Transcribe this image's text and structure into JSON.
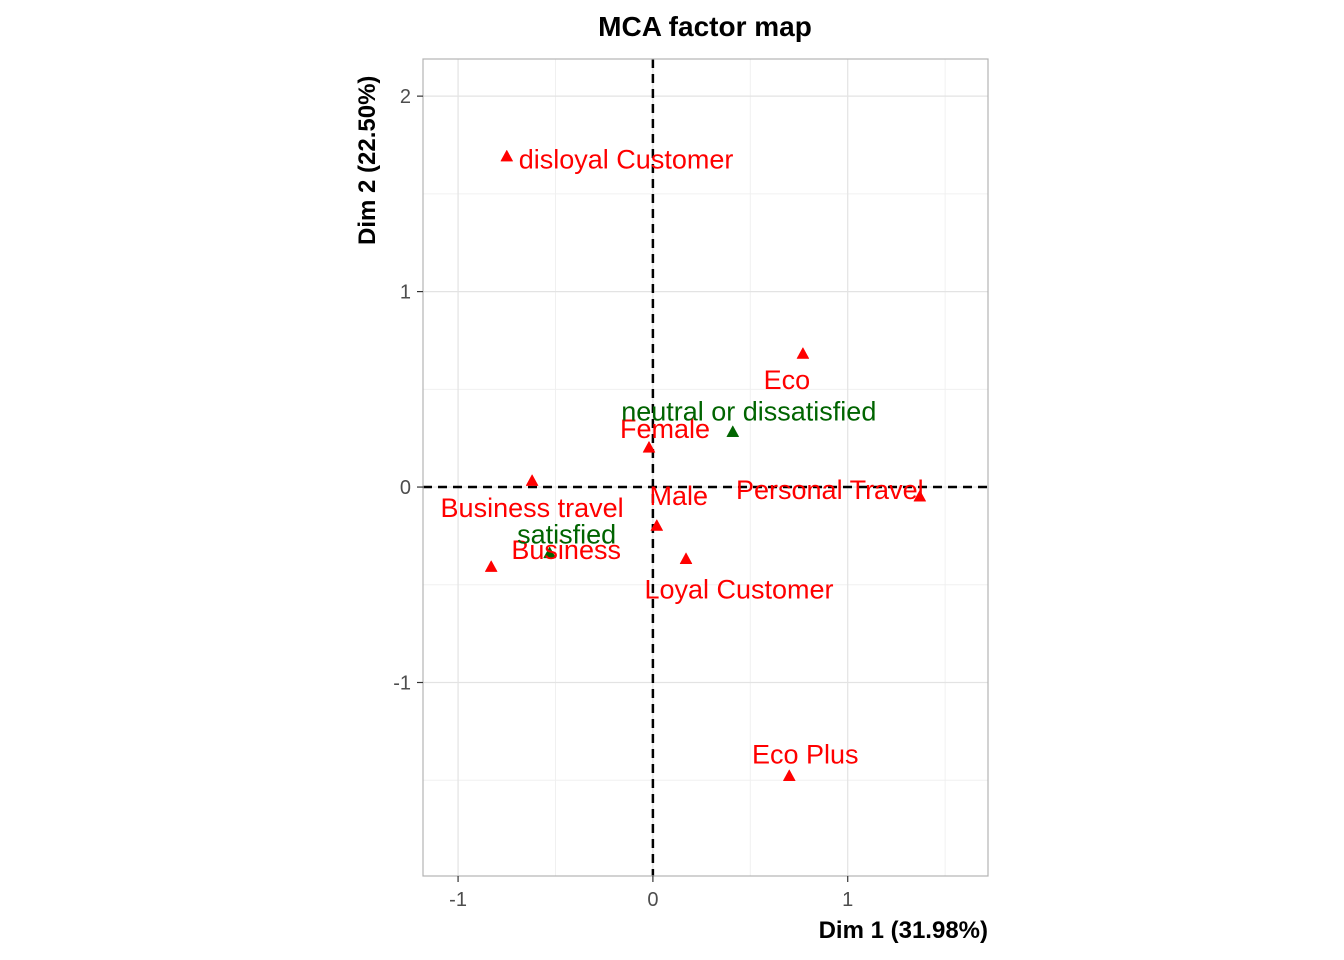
{
  "chart_data": {
    "type": "scatter",
    "title": "MCA factor map",
    "xlabel": "Dim 1 (31.98%)",
    "ylabel": "Dim 2 (22.50%)",
    "xlim": [
      -1.18,
      1.72
    ],
    "ylim": [
      -1.99,
      2.19
    ],
    "x_ticks": [
      -1,
      0,
      1
    ],
    "x_tick_labels": [
      "-1",
      "0",
      "1"
    ],
    "y_ticks": [
      -1,
      0,
      1,
      2
    ],
    "y_tick_labels": [
      "-1",
      "0",
      "1",
      "2"
    ],
    "grid": true,
    "reference_lines": {
      "x": 0,
      "y": 0,
      "style": "dashed"
    },
    "series": [
      {
        "color": "#ff0000",
        "marker": "triangle",
        "points": [
          {
            "label": "disloyal Customer",
            "x": -0.75,
            "y": 1.69
          },
          {
            "label": "Eco",
            "x": 0.77,
            "y": 0.68
          },
          {
            "label": "Female",
            "x": -0.02,
            "y": 0.2
          },
          {
            "label": "Business travel",
            "x": -0.62,
            "y": 0.03
          },
          {
            "label": "Male",
            "x": 0.02,
            "y": -0.2
          },
          {
            "label": "Personal Travel",
            "x": 1.37,
            "y": -0.05
          },
          {
            "label": "Business",
            "x": -0.83,
            "y": -0.41
          },
          {
            "label": "Loyal Customer",
            "x": 0.17,
            "y": -0.37
          },
          {
            "label": "Eco Plus",
            "x": 0.7,
            "y": -1.48
          }
        ]
      },
      {
        "color": "#006400",
        "marker": "triangle",
        "points": [
          {
            "label": "neutral or dissatisfied",
            "x": 0.41,
            "y": 0.28
          },
          {
            "label": "satisfied",
            "x": -0.53,
            "y": -0.34
          }
        ]
      }
    ]
  }
}
